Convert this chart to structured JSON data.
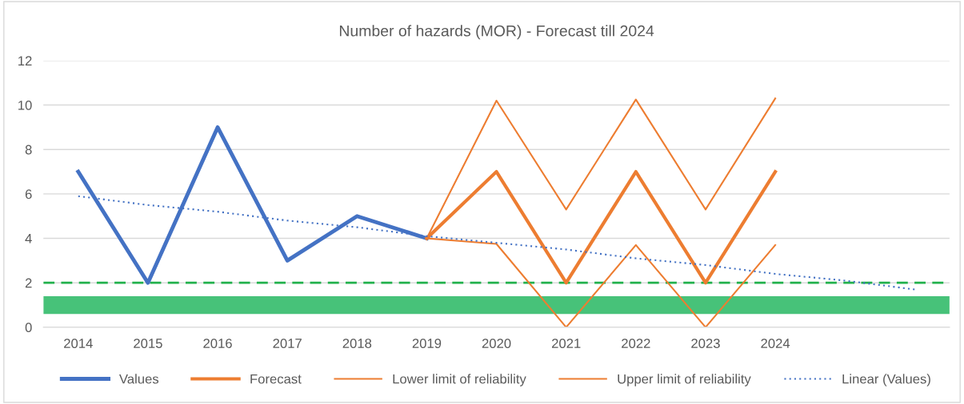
{
  "chart_data": {
    "type": "line",
    "title": "Number of hazards (MOR) - Forecast till 2024",
    "categories": [
      "2014",
      "2015",
      "2016",
      "2017",
      "2018",
      "2019",
      "2020",
      "2021",
      "2022",
      "2023",
      "2024",
      null,
      null
    ],
    "series": [
      {
        "name": "Values",
        "color": "#4472c4",
        "values": [
          7,
          2,
          9,
          3,
          5,
          4,
          null,
          null,
          null,
          null,
          null,
          null,
          null
        ]
      },
      {
        "name": "Forecast",
        "color": "#ed7d31",
        "values": [
          null,
          null,
          null,
          null,
          null,
          4,
          7,
          2,
          7,
          2,
          7,
          null,
          null
        ]
      },
      {
        "name": "Lower limit of reliability",
        "color": "#ed7d31",
        "values": [
          null,
          null,
          null,
          null,
          null,
          4,
          3.75,
          0,
          3.7,
          0,
          3.7,
          null,
          null
        ]
      },
      {
        "name": "Upper limit of reliability",
        "color": "#ed7d31",
        "values": [
          null,
          null,
          null,
          null,
          null,
          4,
          10.2,
          5.3,
          10.25,
          5.3,
          10.3,
          null,
          null
        ]
      },
      {
        "name": "Linear (Values)",
        "color": "#4472c4",
        "line_style": "dotted",
        "values": [
          5.9,
          5.5,
          5.2,
          4.8,
          4.5,
          4.1,
          3.8,
          3.5,
          3.1,
          2.8,
          2.4,
          2.1,
          1.7
        ]
      }
    ],
    "ylim": [
      0,
      12
    ],
    "yticks": [
      0,
      2,
      4,
      6,
      8,
      10,
      12
    ],
    "grid": "y",
    "legend": "bottom",
    "line_style": "solid",
    "marker": "none",
    "ref_lines": [
      {
        "axis": "y",
        "value": 2,
        "color": "#22b14c",
        "line_style": "dashed"
      }
    ],
    "bands": [
      {
        "axis": "y",
        "from": 0.6,
        "to": 1.4,
        "color": "#33bb6a"
      }
    ]
  }
}
